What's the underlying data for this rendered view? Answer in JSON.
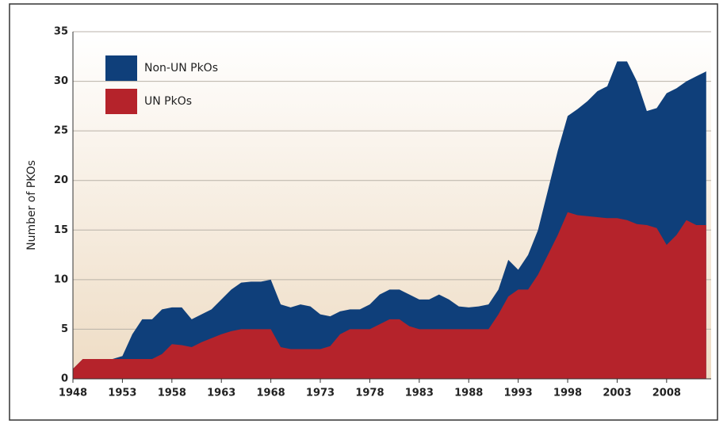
{
  "chart_data": {
    "type": "stacked_area",
    "y_label": "Number of PKOs",
    "x": [
      1948,
      1949,
      1950,
      1951,
      1952,
      1953,
      1954,
      1955,
      1956,
      1957,
      1958,
      1959,
      1960,
      1961,
      1962,
      1963,
      1964,
      1965,
      1966,
      1967,
      1968,
      1969,
      1970,
      1971,
      1972,
      1973,
      1974,
      1975,
      1976,
      1977,
      1978,
      1979,
      1980,
      1981,
      1982,
      1983,
      1984,
      1985,
      1986,
      1987,
      1988,
      1989,
      1990,
      1991,
      1992,
      1993,
      1994,
      1995,
      1996,
      1997,
      1998,
      1999,
      2000,
      2001,
      2002,
      2003,
      2004,
      2005,
      2006,
      2007,
      2008,
      2009,
      2010,
      2011,
      2012
    ],
    "series": [
      {
        "name": "UN PkOs",
        "color": "#b5232b",
        "values": [
          1,
          2,
          2,
          2,
          2,
          2,
          2,
          2,
          2,
          2.5,
          3.5,
          3.4,
          3.2,
          3.7,
          4.1,
          4.5,
          4.8,
          5,
          5,
          5,
          5,
          3.2,
          3,
          3,
          3,
          3,
          3.3,
          4.5,
          5,
          5,
          5,
          5.5,
          6,
          6,
          5.3,
          5,
          5,
          5,
          5,
          5,
          5,
          5,
          5,
          6.5,
          8.3,
          9,
          9,
          10.5,
          12.5,
          14.5,
          16.8,
          16.5,
          16.4,
          16.3,
          16.2,
          16.2,
          16,
          15.6,
          15.5,
          15.2,
          13.5,
          14.5,
          16,
          15.5,
          15.5
        ]
      },
      {
        "name": "Non-UN PkOs",
        "color": "#0f3f7a",
        "values": [
          0,
          0,
          0,
          0,
          0,
          0.3,
          2.5,
          4,
          4,
          4.5,
          3.7,
          3.8,
          2.8,
          2.8,
          2.9,
          3.5,
          4.2,
          4.7,
          4.8,
          4.8,
          5,
          4.3,
          4.2,
          4.5,
          4.3,
          3.5,
          3,
          2.3,
          2,
          2,
          2.5,
          3,
          3,
          3,
          3.2,
          3,
          3,
          3.5,
          3,
          2.3,
          2.2,
          2.3,
          2.5,
          2.5,
          3.7,
          2,
          3.5,
          4.5,
          6.5,
          8.5,
          9.7,
          10.7,
          11.6,
          12.7,
          13.3,
          15.8,
          16,
          14.4,
          11.5,
          12.1,
          15.3,
          14.8,
          14,
          15,
          15.5
        ]
      }
    ],
    "xlim": [
      1948,
      2012.5
    ],
    "xticks": [
      1948,
      1953,
      1958,
      1963,
      1968,
      1973,
      1978,
      1983,
      1988,
      1993,
      1998,
      2003,
      2008
    ],
    "ylim": [
      0,
      35
    ],
    "yticks": [
      0,
      5,
      10,
      15,
      20,
      25,
      30,
      35
    ],
    "grid": true,
    "legend": "top-left"
  }
}
